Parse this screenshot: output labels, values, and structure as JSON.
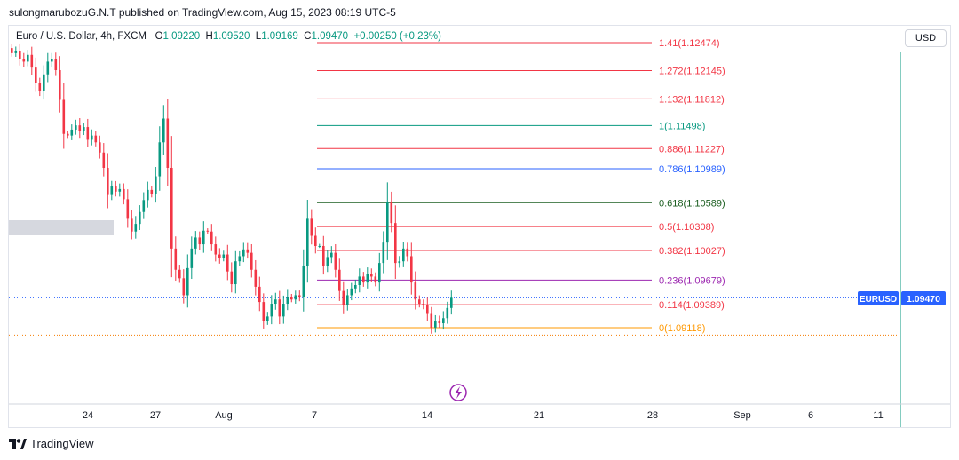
{
  "header": {
    "published_line": "sulongmarubozuG.N.T published on TradingView.com, Aug 15, 2023 08:19 UTC-5"
  },
  "legend": {
    "symbol": "Euro / U.S. Dollar, 4h, FXCM",
    "open_label": "O",
    "open": "1.09220",
    "high_label": "H",
    "high": "1.09520",
    "low_label": "L",
    "low": "1.09169",
    "close_label": "C",
    "close": "1.09470",
    "change": "+0.00250 (+0.23%)"
  },
  "currency_button": {
    "label": "USD"
  },
  "price_tag": {
    "symbol": "EURUSD",
    "price": "1.09470"
  },
  "footer": {
    "brand": "TradingView"
  },
  "colors": {
    "up": "#089981",
    "down": "#f23645",
    "fib_red": "#f23645",
    "fib_teal": "#089981",
    "fib_blue": "#2962ff",
    "fib_green": "#1b5e20",
    "fib_purple": "#9c27b0",
    "fib_orange": "#ff9800",
    "price_line": "#2962ff",
    "tag_bg": "#2962ff"
  },
  "chart_data": {
    "type": "candlestick",
    "x_tick_labels": [
      "24",
      "27",
      "Aug",
      "7",
      "14",
      "21",
      "28",
      "Sep",
      "6",
      "11"
    ],
    "fib_levels": [
      {
        "label": "1.41(1.12474)",
        "value": 1.12474,
        "color": "#f23645"
      },
      {
        "label": "1.272(1.12145)",
        "value": 1.12145,
        "color": "#f23645"
      },
      {
        "label": "1.132(1.11812)",
        "value": 1.11812,
        "color": "#f23645"
      },
      {
        "label": "1(1.11498)",
        "value": 1.11498,
        "color": "#089981"
      },
      {
        "label": "0.886(1.11227)",
        "value": 1.11227,
        "color": "#f23645"
      },
      {
        "label": "0.786(1.10989)",
        "value": 1.10989,
        "color": "#2962ff"
      },
      {
        "label": "0.618(1.10589)",
        "value": 1.10589,
        "color": "#1b5e20"
      },
      {
        "label": "0.5(1.10308)",
        "value": 1.10308,
        "color": "#f23645"
      },
      {
        "label": "0.382(1.10027)",
        "value": 1.10027,
        "color": "#f23645"
      },
      {
        "label": "0.236(1.09679)",
        "value": 1.09679,
        "color": "#9c27b0"
      },
      {
        "label": "0.114(1.09389)",
        "value": 1.09389,
        "color": "#f23645"
      },
      {
        "label": "0(1.09118)",
        "value": 1.09118,
        "color": "#ff9800"
      }
    ],
    "current_price": 1.0947,
    "low_line_price": 1.0903,
    "closes": [
      1.1235,
      1.1238,
      1.1228,
      1.1225,
      1.1233,
      1.1218,
      1.12,
      1.119,
      1.121,
      1.1225,
      1.1228,
      1.1215,
      1.118,
      1.114,
      1.1138,
      1.1145,
      1.115,
      1.1143,
      1.1148,
      1.1133,
      1.1138,
      1.113,
      1.1118,
      1.11,
      1.1068,
      1.1078,
      1.1072,
      1.1075,
      1.1063,
      1.104,
      1.1025,
      1.1034,
      1.1048,
      1.1062,
      1.1074,
      1.1069,
      1.109,
      1.113,
      1.1158,
      1.11,
      1.1005,
      1.098,
      1.097,
      1.095,
      1.0982,
      1.1005,
      1.1018,
      1.101,
      1.1026,
      1.1025,
      1.101,
      1.0998,
      1.0994,
      1.0998,
      1.0978,
      1.0963,
      1.099,
      1.0996,
      1.1004,
      1.1,
      1.098,
      1.096,
      1.0942,
      1.092,
      1.0925,
      1.094,
      1.0945,
      1.0925,
      1.094,
      1.0948,
      1.0945,
      1.095,
      1.0948,
      1.0985,
      1.104,
      1.102,
      1.1008,
      1.1008,
      1.0985,
      1.0995,
      1.1,
      1.098,
      1.0955,
      1.0938,
      1.095,
      1.0958,
      1.0962,
      1.0972,
      1.0965,
      1.0975,
      1.0972,
      1.0965,
      1.0988,
      1.1012,
      1.106,
      1.1035,
      1.0988,
      1.099,
      1.1005,
      1.0996,
      1.0965,
      1.0945,
      1.094,
      1.0938,
      1.0928,
      1.0912,
      1.092,
      1.0917,
      1.0923,
      1.0935,
      1.0947
    ]
  }
}
